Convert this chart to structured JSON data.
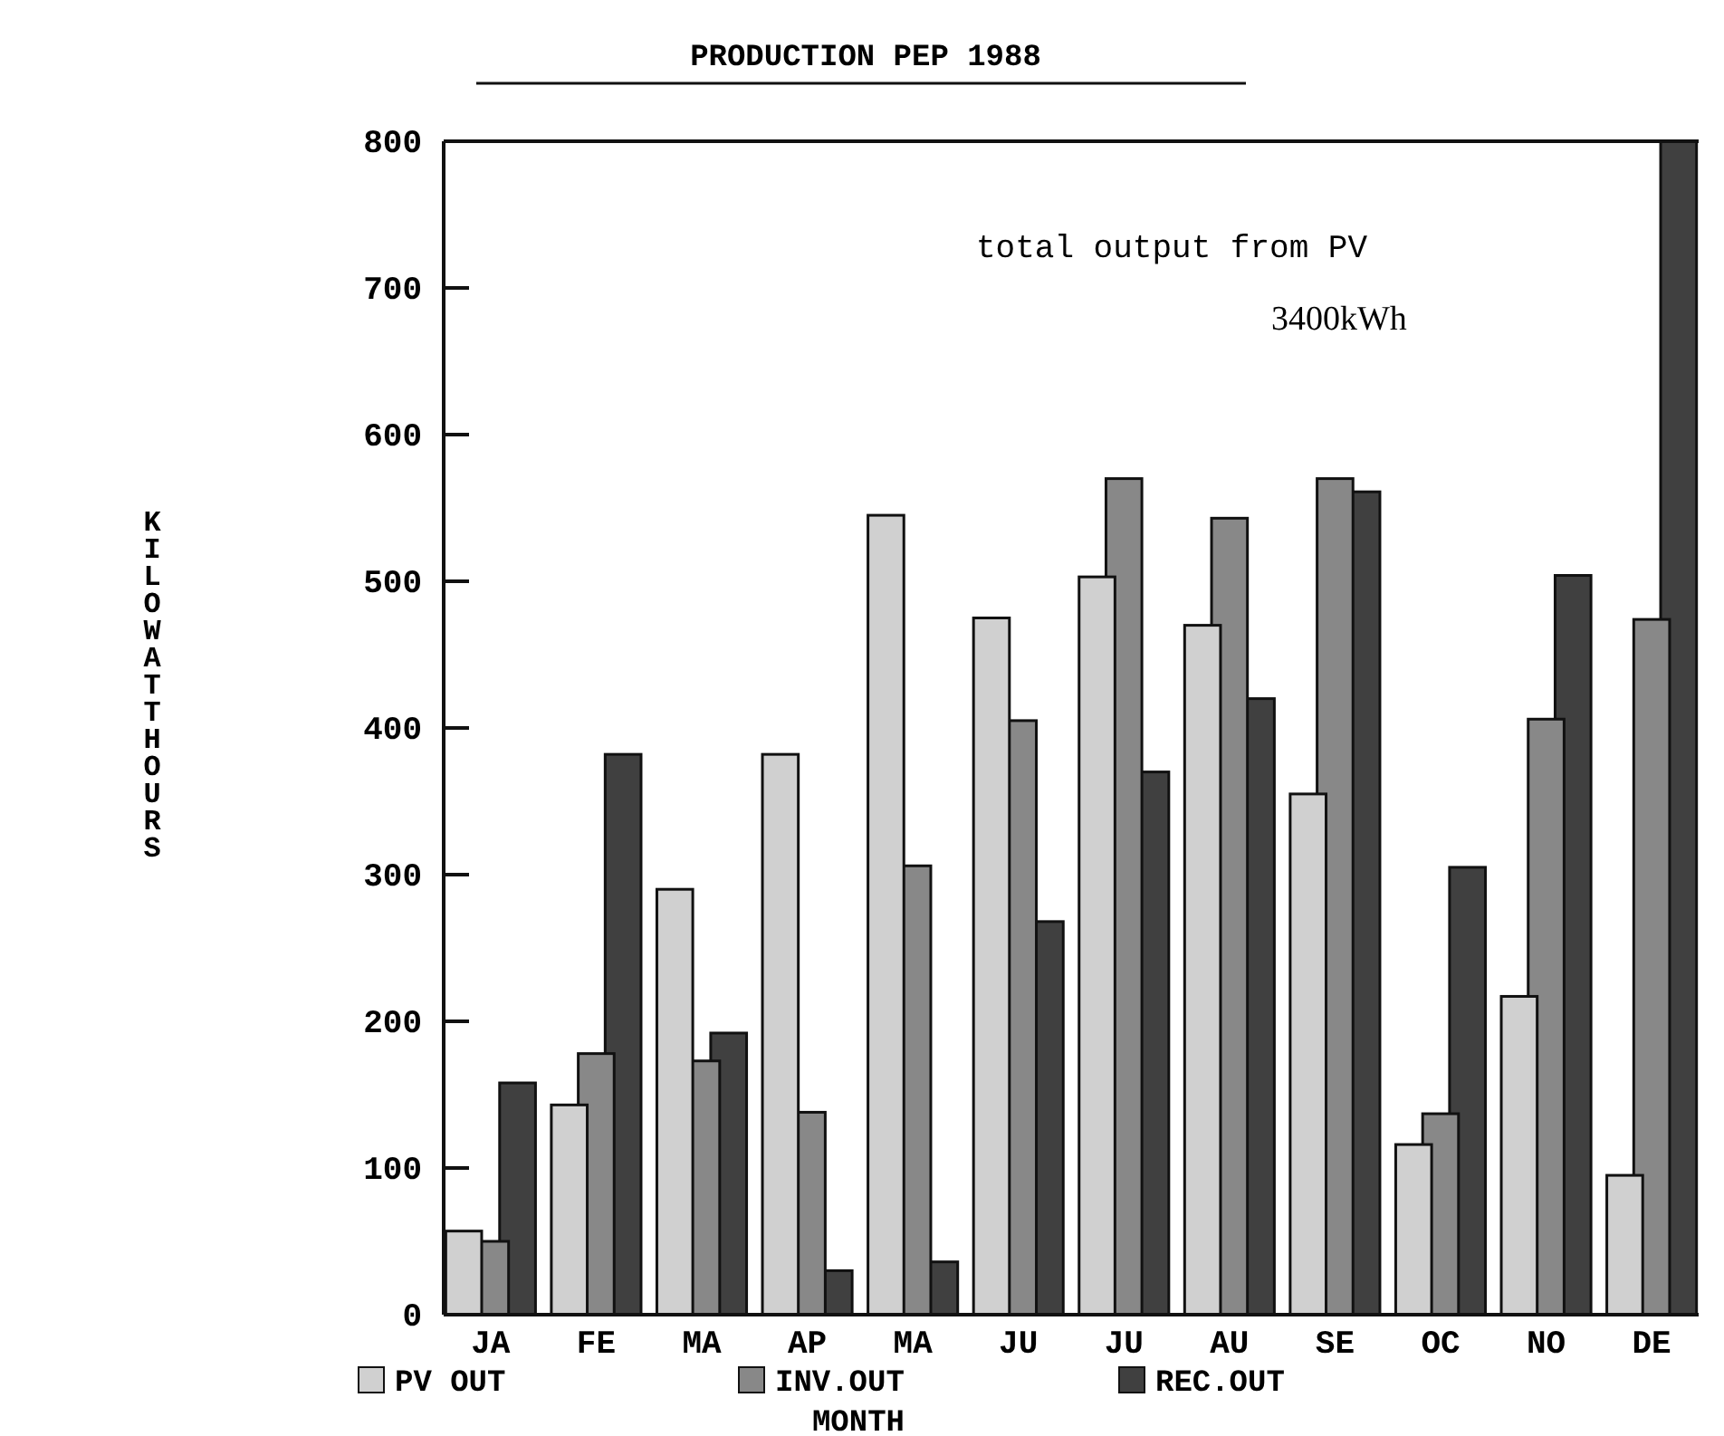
{
  "chart_data": {
    "type": "bar",
    "title": "PRODUCTION PEP 1988",
    "xlabel": "MONTH",
    "ylabel": "KILOWATTHOURS",
    "categories": [
      "JA",
      "FE",
      "MA",
      "AP",
      "MA",
      "JU",
      "JU",
      "AU",
      "SE",
      "OC",
      "NO",
      "DE"
    ],
    "series": [
      {
        "name": "PV OUT",
        "color": "#d0d0d0",
        "values": [
          57,
          143,
          290,
          382,
          545,
          475,
          503,
          470,
          355,
          116,
          217,
          95
        ]
      },
      {
        "name": "INV.OUT",
        "color": "#888888",
        "values": [
          50,
          178,
          173,
          138,
          306,
          405,
          570,
          543,
          570,
          137,
          406,
          474
        ]
      },
      {
        "name": "REC.OUT",
        "color": "#404040",
        "values": [
          158,
          382,
          192,
          30,
          36,
          268,
          370,
          420,
          561,
          305,
          504,
          800
        ]
      }
    ],
    "ylim": [
      0,
      800
    ],
    "yticks": [
      0,
      100,
      200,
      300,
      400,
      500,
      600,
      700,
      800
    ],
    "grid": false,
    "legend": "bottom",
    "annotations": [
      "total output from PV",
      "3400kWh"
    ]
  }
}
